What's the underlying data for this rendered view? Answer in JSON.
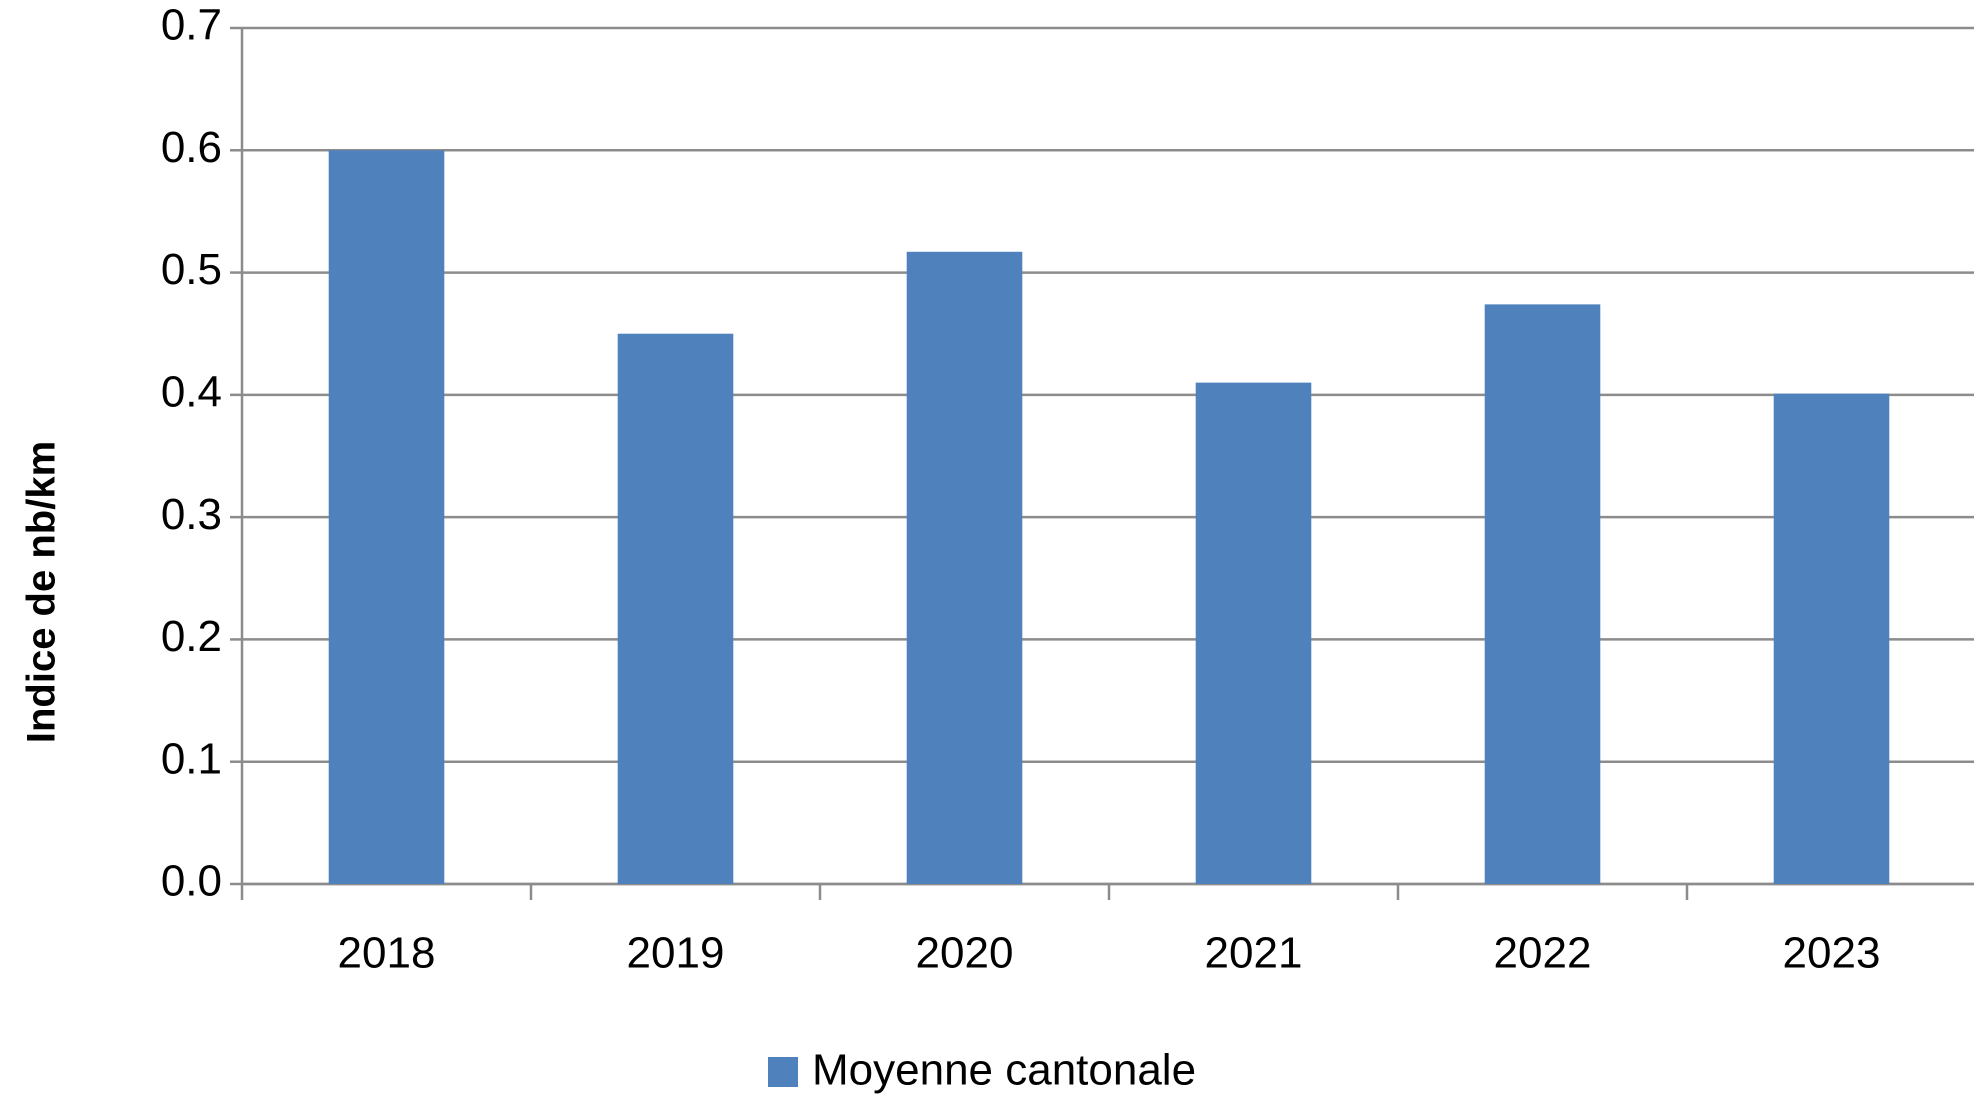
{
  "chart_data": {
    "type": "bar",
    "ylabel": "Indice de nb/km",
    "categories": [
      "2018",
      "2019",
      "2020",
      "2021",
      "2022",
      "2023"
    ],
    "series": [
      {
        "name": "Moyenne cantonale",
        "color": "#4f81bd",
        "values": [
          0.6,
          0.45,
          0.517,
          0.41,
          0.474,
          0.401
        ]
      }
    ],
    "ylim": [
      0,
      0.7
    ],
    "yticks": [
      {
        "value": 0,
        "label": "0.0"
      },
      0.1,
      0.2,
      0.3,
      0.4,
      0.5,
      0.6,
      0.7
    ],
    "grid": true,
    "legend": "bottom"
  }
}
